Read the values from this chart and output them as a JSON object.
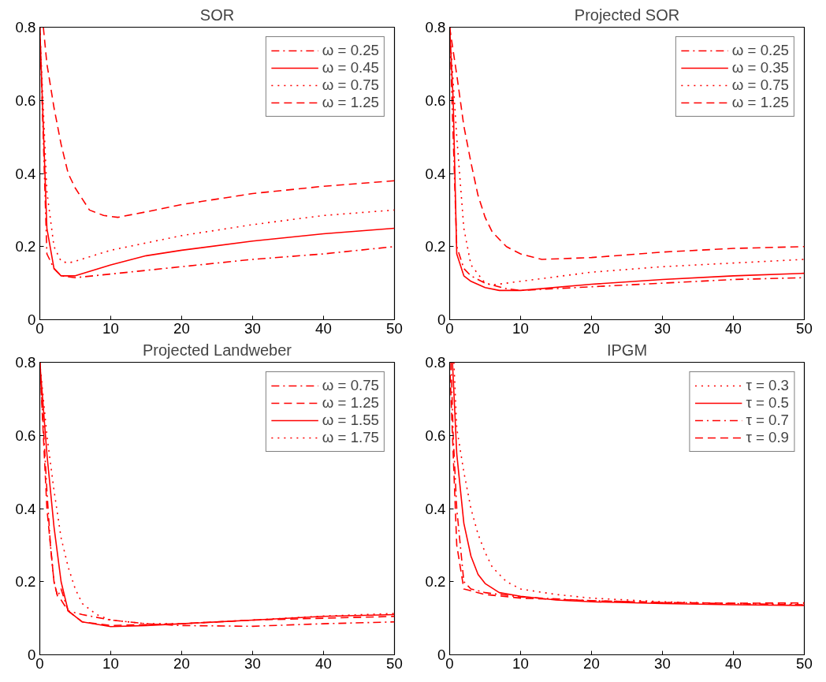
{
  "chart_data": [
    {
      "type": "line",
      "title": "SOR",
      "xlim": [
        0,
        50
      ],
      "ylim": [
        0,
        0.8
      ],
      "xticks": [
        0,
        10,
        20,
        30,
        40,
        50
      ],
      "yticks": [
        0,
        0.2,
        0.4,
        0.6,
        0.8
      ],
      "grid": false,
      "legend": "top right",
      "series": [
        {
          "name": "ω = 0.25",
          "color": "#ff0000",
          "line_style": "dashdot",
          "x": [
            0,
            1,
            2,
            3,
            5,
            10,
            20,
            30,
            40,
            50
          ],
          "values": [
            0.8,
            0.18,
            0.14,
            0.12,
            0.115,
            0.125,
            0.145,
            0.165,
            0.18,
            0.2
          ]
        },
        {
          "name": "ω = 0.45",
          "color": "#ff0000",
          "line_style": "solid",
          "x": [
            0,
            1,
            2,
            3,
            5,
            10,
            15,
            20,
            30,
            40,
            50
          ],
          "values": [
            0.8,
            0.25,
            0.14,
            0.12,
            0.12,
            0.15,
            0.175,
            0.19,
            0.215,
            0.235,
            0.25
          ]
        },
        {
          "name": "ω = 0.75",
          "color": "#ff0000",
          "line_style": "dotted",
          "x": [
            0,
            1,
            2,
            3,
            4,
            5,
            10,
            20,
            30,
            40,
            50
          ],
          "values": [
            0.8,
            0.35,
            0.2,
            0.16,
            0.155,
            0.16,
            0.19,
            0.23,
            0.26,
            0.285,
            0.3
          ]
        },
        {
          "name": "ω = 1.25",
          "color": "#ff0000",
          "line_style": "dashed",
          "x": [
            0.5,
            1,
            2,
            3,
            4,
            5,
            7,
            9,
            11,
            15,
            20,
            30,
            40,
            50
          ],
          "values": [
            0.8,
            0.7,
            0.58,
            0.48,
            0.4,
            0.36,
            0.3,
            0.285,
            0.28,
            0.295,
            0.315,
            0.345,
            0.365,
            0.38
          ]
        }
      ]
    },
    {
      "type": "line",
      "title": "Projected SOR",
      "xlim": [
        0,
        50
      ],
      "ylim": [
        0,
        0.8
      ],
      "xticks": [
        0,
        10,
        20,
        30,
        40,
        50
      ],
      "yticks": [
        0,
        0.2,
        0.4,
        0.6,
        0.8
      ],
      "grid": false,
      "legend": "top right",
      "series": [
        {
          "name": "ω = 0.25",
          "color": "#ff0000",
          "line_style": "dashdot",
          "x": [
            0,
            1,
            2,
            3,
            5,
            8,
            10,
            20,
            30,
            40,
            50
          ],
          "values": [
            0.8,
            0.2,
            0.14,
            0.12,
            0.1,
            0.085,
            0.08,
            0.09,
            0.1,
            0.11,
            0.115
          ]
        },
        {
          "name": "ω = 0.35",
          "color": "#ff0000",
          "line_style": "solid",
          "x": [
            0,
            0.5,
            1,
            2,
            3,
            5,
            7,
            10,
            20,
            30,
            40,
            50
          ],
          "values": [
            0.8,
            0.6,
            0.18,
            0.12,
            0.105,
            0.088,
            0.08,
            0.08,
            0.097,
            0.11,
            0.12,
            0.127
          ]
        },
        {
          "name": "ω = 0.75",
          "color": "#ff0000",
          "line_style": "dotted",
          "x": [
            0,
            1,
            2,
            3,
            5,
            6,
            10,
            20,
            30,
            40,
            50
          ],
          "values": [
            0.8,
            0.5,
            0.25,
            0.15,
            0.1,
            0.095,
            0.105,
            0.13,
            0.145,
            0.155,
            0.165
          ]
        },
        {
          "name": "ω = 1.25",
          "color": "#ff0000",
          "line_style": "dashed",
          "x": [
            0,
            1,
            2,
            3,
            4,
            5,
            6,
            8,
            10,
            13,
            20,
            30,
            40,
            50
          ],
          "values": [
            0.8,
            0.67,
            0.53,
            0.43,
            0.34,
            0.28,
            0.24,
            0.2,
            0.18,
            0.165,
            0.17,
            0.185,
            0.195,
            0.2
          ]
        }
      ]
    },
    {
      "type": "line",
      "title": "Projected Landweber",
      "xlim": [
        0,
        50
      ],
      "ylim": [
        0,
        0.8
      ],
      "xticks": [
        0,
        10,
        20,
        30,
        40,
        50
      ],
      "yticks": [
        0,
        0.2,
        0.4,
        0.6,
        0.8
      ],
      "grid": false,
      "legend": "top right",
      "series": [
        {
          "name": "ω = 0.75",
          "color": "#ff0000",
          "line_style": "dashdot",
          "x": [
            0,
            1,
            1.5,
            2,
            2.5,
            3,
            4,
            6,
            10,
            15,
            20,
            30,
            40,
            50
          ],
          "values": [
            0.8,
            0.45,
            0.3,
            0.2,
            0.16,
            0.18,
            0.12,
            0.11,
            0.095,
            0.085,
            0.08,
            0.078,
            0.085,
            0.09
          ]
        },
        {
          "name": "ω = 1.25",
          "color": "#ff0000",
          "line_style": "dashed",
          "x": [
            0,
            1,
            2,
            2.5,
            3,
            4,
            6,
            10,
            20,
            30,
            40,
            50
          ],
          "values": [
            0.8,
            0.4,
            0.2,
            0.16,
            0.15,
            0.12,
            0.09,
            0.08,
            0.085,
            0.095,
            0.1,
            0.105
          ]
        },
        {
          "name": "ω = 1.55",
          "color": "#ff0000",
          "line_style": "solid",
          "x": [
            0,
            1,
            2,
            3,
            4,
            6,
            10,
            15,
            20,
            30,
            40,
            50
          ],
          "values": [
            0.8,
            0.55,
            0.35,
            0.2,
            0.12,
            0.09,
            0.077,
            0.08,
            0.085,
            0.095,
            0.105,
            0.11
          ]
        },
        {
          "name": "ω = 1.75",
          "color": "#ff0000",
          "line_style": "dotted",
          "x": [
            0,
            1,
            2,
            3,
            4,
            5,
            6,
            8,
            10,
            15,
            20,
            30,
            40,
            50
          ],
          "values": [
            0.8,
            0.6,
            0.45,
            0.32,
            0.24,
            0.18,
            0.14,
            0.11,
            0.095,
            0.085,
            0.085,
            0.095,
            0.106,
            0.113
          ]
        }
      ]
    },
    {
      "type": "line",
      "title": "IPGM",
      "xlim": [
        0,
        50
      ],
      "ylim": [
        0,
        0.8
      ],
      "xticks": [
        0,
        10,
        20,
        30,
        40,
        50
      ],
      "yticks": [
        0,
        0.2,
        0.4,
        0.6,
        0.8
      ],
      "grid": false,
      "legend": "top right",
      "series": [
        {
          "name": "τ = 0.3",
          "color": "#ff0000",
          "line_style": "dotted",
          "x": [
            0.6,
            1,
            2,
            3,
            4,
            5,
            6,
            8,
            10,
            15,
            20,
            30,
            40,
            50
          ],
          "values": [
            0.8,
            0.62,
            0.5,
            0.4,
            0.33,
            0.28,
            0.24,
            0.2,
            0.18,
            0.165,
            0.155,
            0.145,
            0.14,
            0.14
          ]
        },
        {
          "name": "τ = 0.5",
          "color": "#ff0000",
          "line_style": "solid",
          "x": [
            0.4,
            1,
            2,
            3,
            4,
            5,
            7,
            10,
            15,
            20,
            30,
            40,
            50
          ],
          "values": [
            0.8,
            0.55,
            0.36,
            0.27,
            0.22,
            0.195,
            0.17,
            0.16,
            0.15,
            0.145,
            0.14,
            0.137,
            0.135
          ]
        },
        {
          "name": "τ = 0.7",
          "color": "#ff0000",
          "line_style": "dashdot",
          "x": [
            0.2,
            0.5,
            1,
            2,
            3,
            5,
            10,
            20,
            30,
            40,
            50
          ],
          "values": [
            0.8,
            0.6,
            0.4,
            0.2,
            0.18,
            0.17,
            0.158,
            0.148,
            0.143,
            0.14,
            0.137
          ]
        },
        {
          "name": "τ = 0.9",
          "color": "#ff0000",
          "line_style": "dashed",
          "x": [
            0,
            0.5,
            1,
            2,
            3,
            5,
            10,
            20,
            30,
            40,
            50
          ],
          "values": [
            0.8,
            0.55,
            0.3,
            0.18,
            0.175,
            0.165,
            0.155,
            0.148,
            0.143,
            0.141,
            0.142
          ]
        }
      ]
    }
  ]
}
